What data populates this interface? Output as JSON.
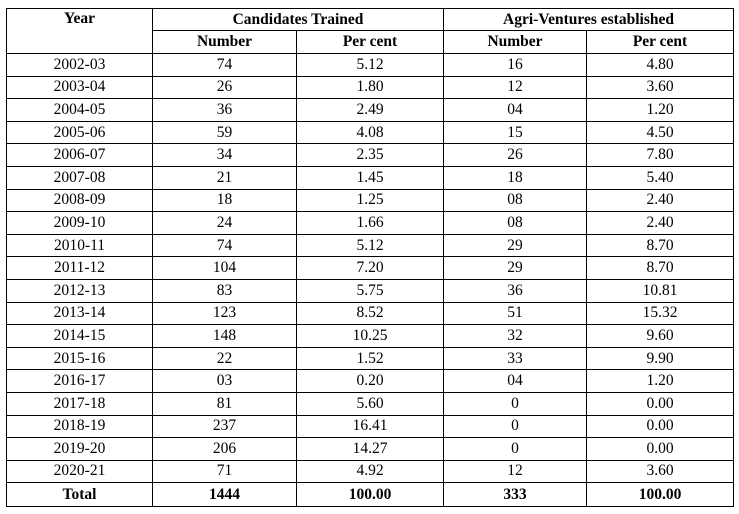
{
  "table": {
    "headers": {
      "year": "Year",
      "candidates_trained": "Candidates Trained",
      "agri_ventures": "Agri-Ventures established",
      "number": "Number",
      "per_cent": "Per cent"
    },
    "rows": [
      {
        "year": "2002-03",
        "ct_number": "74",
        "ct_pct": "5.12",
        "av_number": "16",
        "av_pct": "4.80"
      },
      {
        "year": "2003-04",
        "ct_number": "26",
        "ct_pct": "1.80",
        "av_number": "12",
        "av_pct": "3.60"
      },
      {
        "year": "2004-05",
        "ct_number": "36",
        "ct_pct": "2.49",
        "av_number": "04",
        "av_pct": "1.20"
      },
      {
        "year": "2005-06",
        "ct_number": "59",
        "ct_pct": "4.08",
        "av_number": "15",
        "av_pct": "4.50"
      },
      {
        "year": "2006-07",
        "ct_number": "34",
        "ct_pct": "2.35",
        "av_number": "26",
        "av_pct": "7.80"
      },
      {
        "year": "2007-08",
        "ct_number": "21",
        "ct_pct": "1.45",
        "av_number": "18",
        "av_pct": "5.40"
      },
      {
        "year": "2008-09",
        "ct_number": "18",
        "ct_pct": "1.25",
        "av_number": "08",
        "av_pct": "2.40"
      },
      {
        "year": "2009-10",
        "ct_number": "24",
        "ct_pct": "1.66",
        "av_number": "08",
        "av_pct": "2.40"
      },
      {
        "year": "2010-11",
        "ct_number": "74",
        "ct_pct": "5.12",
        "av_number": "29",
        "av_pct": "8.70"
      },
      {
        "year": "2011-12",
        "ct_number": "104",
        "ct_pct": "7.20",
        "av_number": "29",
        "av_pct": "8.70"
      },
      {
        "year": "2012-13",
        "ct_number": "83",
        "ct_pct": "5.75",
        "av_number": "36",
        "av_pct": "10.81"
      },
      {
        "year": "2013-14",
        "ct_number": "123",
        "ct_pct": "8.52",
        "av_number": "51",
        "av_pct": "15.32"
      },
      {
        "year": "2014-15",
        "ct_number": "148",
        "ct_pct": "10.25",
        "av_number": "32",
        "av_pct": "9.60"
      },
      {
        "year": "2015-16",
        "ct_number": "22",
        "ct_pct": "1.52",
        "av_number": "33",
        "av_pct": "9.90"
      },
      {
        "year": "2016-17",
        "ct_number": "03",
        "ct_pct": "0.20",
        "av_number": "04",
        "av_pct": "1.20"
      },
      {
        "year": "2017-18",
        "ct_number": "81",
        "ct_pct": "5.60",
        "av_number": "0",
        "av_pct": "0.00"
      },
      {
        "year": "2018-19",
        "ct_number": "237",
        "ct_pct": "16.41",
        "av_number": "0",
        "av_pct": "0.00"
      },
      {
        "year": "2019-20",
        "ct_number": "206",
        "ct_pct": "14.27",
        "av_number": "0",
        "av_pct": "0.00"
      },
      {
        "year": "2020-21",
        "ct_number": "71",
        "ct_pct": "4.92",
        "av_number": "12",
        "av_pct": "3.60"
      }
    ],
    "total": {
      "label": "Total",
      "ct_number": "1444",
      "ct_pct": "100.00",
      "av_number": "333",
      "av_pct": "100.00"
    }
  }
}
